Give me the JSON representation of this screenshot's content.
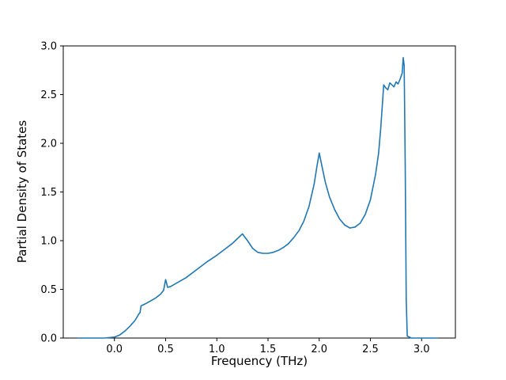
{
  "chart_data": {
    "type": "line",
    "title": "",
    "xlabel": "Frequency (THz)",
    "ylabel": "Partial Density of States",
    "xlim": [
      -0.5,
      3.33
    ],
    "ylim": [
      0,
      3.0
    ],
    "grid": false,
    "legend_position": "none",
    "line_color": "#1f77b4",
    "xticks": [
      0.0,
      0.5,
      1.0,
      1.5,
      2.0,
      2.5,
      3.0
    ],
    "yticks": [
      0.0,
      0.5,
      1.0,
      1.5,
      2.0,
      2.5,
      3.0
    ],
    "xtick_labels": [
      "0.0",
      "0.5",
      "1.0",
      "1.5",
      "2.0",
      "2.5",
      "3.0"
    ],
    "ytick_labels": [
      "0.0",
      "0.5",
      "1.0",
      "1.5",
      "2.0",
      "2.5",
      "3.0"
    ],
    "series": [
      {
        "name": "partial-density-of-states",
        "x": [
          -0.35,
          -0.1,
          0.0,
          0.05,
          0.1,
          0.15,
          0.2,
          0.24,
          0.25,
          0.26,
          0.3,
          0.35,
          0.4,
          0.45,
          0.48,
          0.5,
          0.52,
          0.55,
          0.6,
          0.7,
          0.8,
          0.9,
          1.0,
          1.1,
          1.15,
          1.2,
          1.25,
          1.3,
          1.35,
          1.4,
          1.45,
          1.5,
          1.55,
          1.6,
          1.65,
          1.7,
          1.75,
          1.8,
          1.85,
          1.9,
          1.95,
          1.98,
          2.0,
          2.03,
          2.06,
          2.1,
          2.15,
          2.2,
          2.25,
          2.3,
          2.35,
          2.4,
          2.45,
          2.5,
          2.55,
          2.58,
          2.6,
          2.62,
          2.63,
          2.65,
          2.67,
          2.69,
          2.71,
          2.73,
          2.75,
          2.77,
          2.79,
          2.81,
          2.82,
          2.83,
          2.84,
          2.85,
          2.86,
          2.9,
          3.0,
          3.1,
          3.15
        ],
        "y": [
          0.0,
          0.0,
          0.01,
          0.03,
          0.07,
          0.12,
          0.18,
          0.25,
          0.26,
          0.33,
          0.35,
          0.38,
          0.41,
          0.45,
          0.49,
          0.6,
          0.52,
          0.53,
          0.56,
          0.62,
          0.7,
          0.78,
          0.85,
          0.93,
          0.97,
          1.02,
          1.07,
          1.0,
          0.92,
          0.88,
          0.87,
          0.87,
          0.88,
          0.9,
          0.93,
          0.97,
          1.03,
          1.1,
          1.2,
          1.35,
          1.58,
          1.78,
          1.9,
          1.75,
          1.6,
          1.45,
          1.32,
          1.22,
          1.16,
          1.13,
          1.14,
          1.18,
          1.27,
          1.42,
          1.68,
          1.9,
          2.15,
          2.45,
          2.6,
          2.57,
          2.55,
          2.62,
          2.6,
          2.58,
          2.63,
          2.61,
          2.66,
          2.72,
          2.88,
          2.8,
          1.8,
          0.4,
          0.02,
          0.0,
          0.0,
          0.0,
          0.0
        ]
      }
    ]
  }
}
